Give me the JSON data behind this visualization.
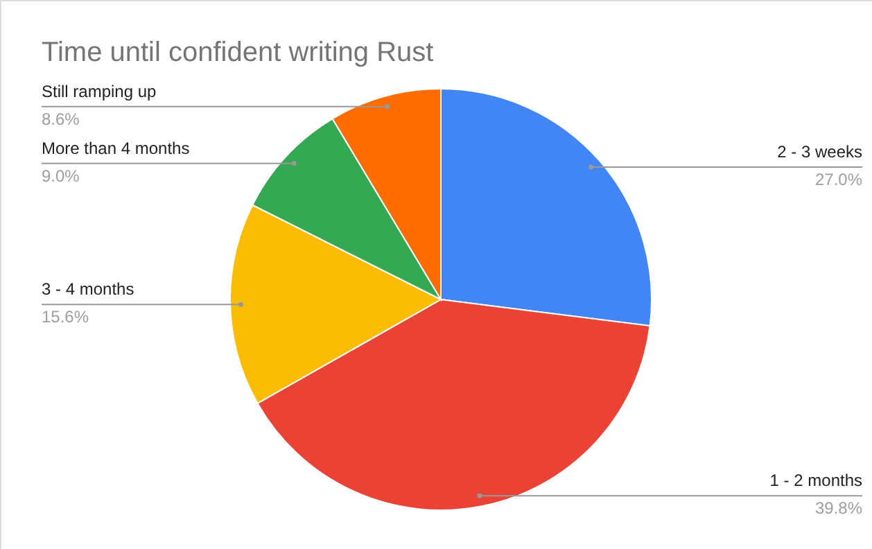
{
  "chart_data": {
    "type": "pie",
    "title": "Time until confident writing Rust",
    "categories": [
      "2 - 3 weeks",
      "1 - 2 months",
      "3 - 4 months",
      "More than 4 months",
      "Still ramping up"
    ],
    "values": [
      27.0,
      39.8,
      15.6,
      9.0,
      8.6
    ],
    "colors": [
      "#4285f4",
      "#ea4335",
      "#fbbc04",
      "#34a853",
      "#ff6d01"
    ],
    "value_labels": [
      "27.0%",
      "39.8%",
      "15.6%",
      "9.0%",
      "8.6%"
    ]
  }
}
